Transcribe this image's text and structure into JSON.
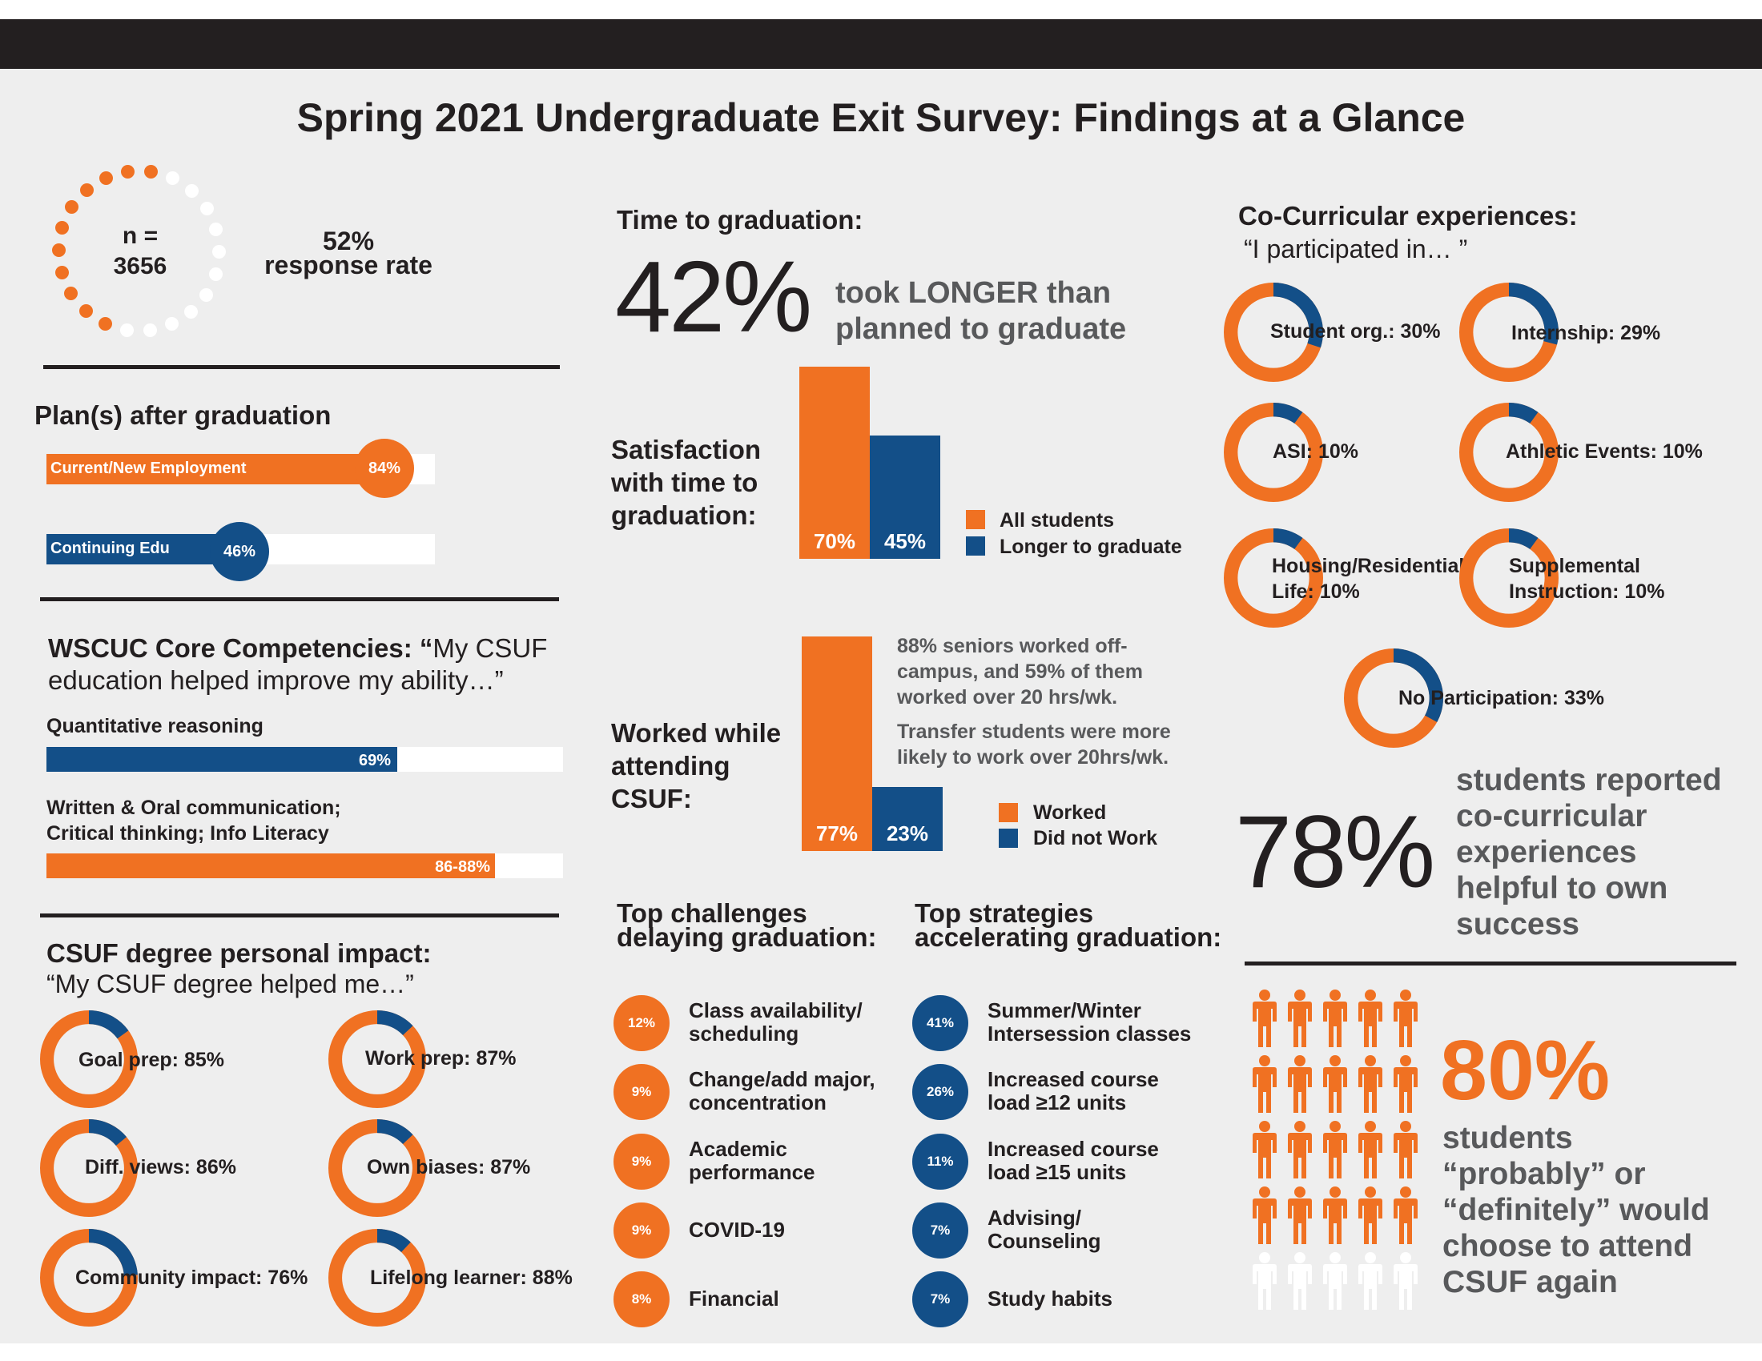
{
  "header": {
    "title": "Spring 2021 Undergraduate Exit Survey: Findings at a Glance"
  },
  "colors": {
    "orange": "#f07122",
    "blue": "#134f88",
    "dark": "#231f20",
    "background": "#eeeeee"
  },
  "response": {
    "n_label": "n =",
    "n_value": "3656",
    "rate": "52%",
    "rate_label": "response rate",
    "rate_fraction": 0.52
  },
  "plans": {
    "heading": "Plan(s) after graduation",
    "items": [
      {
        "label": "Current/New Employment",
        "value_label": "84%",
        "value": 84,
        "color": "orange"
      },
      {
        "label": "Continuing Edu",
        "value_label": "46%",
        "value": 46,
        "color": "blue"
      }
    ]
  },
  "competencies": {
    "heading_bold": "WSCUC Core Competencies:",
    "heading_quote_open": " “",
    "heading_rest": "My CSUF education helped improve my ability…”",
    "items": [
      {
        "label": "Quantitative reasoning",
        "value_label": "69%",
        "value": 69,
        "color": "blue"
      },
      {
        "label_line1": "Written & Oral communication;",
        "label_line2": "Critical thinking; Info Literacy",
        "value_label": "86-88%",
        "value": 88,
        "color": "orange"
      }
    ]
  },
  "impact": {
    "heading": "CSUF degree personal impact:",
    "subheading": "“My CSUF degree helped me…”",
    "items": [
      {
        "label": "Goal prep: 85%",
        "value": 85
      },
      {
        "label": "Work prep: 87%",
        "value": 87
      },
      {
        "label": "Diff. views: 86%",
        "value": 86
      },
      {
        "label": "Own biases: 87%",
        "value": 87
      },
      {
        "label": "Community impact: 76%",
        "value": 76
      },
      {
        "label": "Lifelong learner: 88%",
        "value": 88
      }
    ]
  },
  "time_to_grad": {
    "heading": "Time to graduation:",
    "big_value": "42%",
    "big_text_line1": "took LONGER than",
    "big_text_line2": "planned to graduate"
  },
  "satisfaction": {
    "label_line1": "Satisfaction",
    "label_line2": "with time to",
    "label_line3": "graduation:",
    "legend": [
      {
        "label": "All students",
        "color": "orange"
      },
      {
        "label": "Longer to graduate",
        "color": "blue"
      }
    ]
  },
  "worked": {
    "label_line1": "Worked while",
    "label_line2": "attending",
    "label_line3": "CSUF:",
    "note1_line1": "88% seniors worked off-",
    "note1_line2": "campus, and 59% of them",
    "note1_line3": "worked over 20 hrs/wk.",
    "note2_line1": "Transfer students were more",
    "note2_line2": "likely to work over 20hrs/wk.",
    "legend": [
      {
        "label": "Worked",
        "color": "orange"
      },
      {
        "label": "Did not Work",
        "color": "blue"
      }
    ]
  },
  "chart_data": [
    {
      "type": "bar",
      "categories": [
        "All students",
        "Longer to graduate"
      ],
      "values": [
        70,
        45
      ],
      "value_labels": [
        "70%",
        "45%"
      ],
      "ylim": [
        0,
        100
      ]
    },
    {
      "type": "bar",
      "categories": [
        "Worked",
        "Did not Work"
      ],
      "values": [
        77,
        23
      ],
      "value_labels": [
        "77%",
        "23%"
      ],
      "ylim": [
        0,
        100
      ]
    }
  ],
  "challenges": {
    "heading_line1": "Top challenges",
    "heading_line2": "delaying graduation:",
    "items": [
      {
        "pct": "12%",
        "line1": "Class availability/",
        "line2": "scheduling"
      },
      {
        "pct": "9%",
        "line1": "Change/add major,",
        "line2": "concentration"
      },
      {
        "pct": "9%",
        "line1": "Academic",
        "line2": "performance"
      },
      {
        "pct": "9%",
        "line1": "COVID-19",
        "line2": ""
      },
      {
        "pct": "8%",
        "line1": "Financial",
        "line2": ""
      }
    ]
  },
  "strategies": {
    "heading_line1": "Top strategies",
    "heading_line2": "accelerating graduation:",
    "items": [
      {
        "pct": "41%",
        "line1": "Summer/Winter",
        "line2": "Intersession classes"
      },
      {
        "pct": "26%",
        "line1": "Increased course",
        "line2": "load ≥12 units"
      },
      {
        "pct": "11%",
        "line1": "Increased course",
        "line2": "load ≥15 units"
      },
      {
        "pct": "7%",
        "line1": "Advising/",
        "line2": "Counseling"
      },
      {
        "pct": "7%",
        "line1": "Study habits",
        "line2": ""
      }
    ]
  },
  "cocurricular": {
    "heading": "Co-Curricular experiences:",
    "subheading": "“I participated in… ”",
    "items": [
      {
        "label": "Student org.: 30%",
        "value": 30
      },
      {
        "label": "Internship: 29%",
        "value": 29
      },
      {
        "label": "ASI: 10%",
        "value": 10
      },
      {
        "label": "Athletic Events: 10%",
        "value": 10
      },
      {
        "label_line1": "Housing/Residential",
        "label_line2": "Life: 10%",
        "value": 10
      },
      {
        "label_line1": "Supplemental",
        "label_line2": "Instruction: 10%",
        "value": 10
      },
      {
        "label": "No Participation: 33%",
        "value": 33
      }
    ],
    "big_value": "78%",
    "big_text_line1": "students reported",
    "big_text_line2": "co-curricular",
    "big_text_line3": "experiences",
    "big_text_line4": "helpful to own",
    "big_text_line5": "success"
  },
  "attend_again": {
    "big_value": "80%",
    "text_line1": "students",
    "text_line2": "“probably” or",
    "text_line3": "“definitely” would",
    "text_line4": "choose to attend",
    "text_line5": "CSUF again",
    "filled_fraction": 0.8,
    "icon": "person-icon"
  }
}
